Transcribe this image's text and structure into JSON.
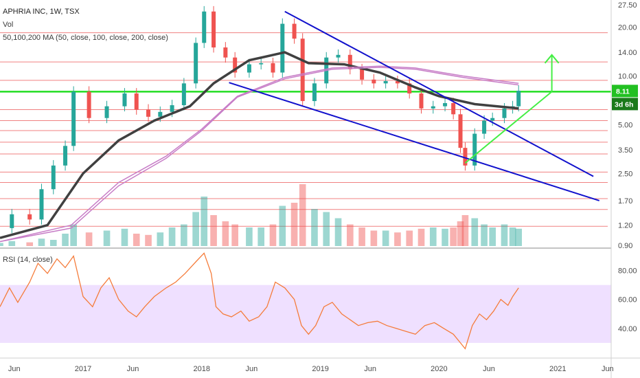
{
  "chart_data": {
    "type": "candlestick",
    "title": "APHRIA INC, 1W, TSX",
    "legend": [
      "Vol",
      "50,100,200 MA (50, close, 100, close, 200, close)"
    ],
    "price_scale": "log",
    "price_ticks": [
      "27.50",
      "20.00",
      "14.00",
      "10.00",
      "8.11",
      "3d 6h",
      "5.00",
      "3.50",
      "2.50",
      "1.70",
      "1.20",
      "0.90"
    ],
    "last_price": "8.11",
    "countdown": "3d 6h",
    "time_ticks": [
      "Jun",
      "2017",
      "Jun",
      "2018",
      "Jun",
      "2019",
      "Jun",
      "2020",
      "Jun",
      "2021",
      "Jun"
    ],
    "price_series": [
      {
        "x": 2016.3,
        "close": 1.15
      },
      {
        "x": 2016.4,
        "close": 1.4
      },
      {
        "x": 2016.55,
        "close": 1.3
      },
      {
        "x": 2016.65,
        "close": 2.0
      },
      {
        "x": 2016.75,
        "close": 2.8
      },
      {
        "x": 2016.85,
        "close": 3.7
      },
      {
        "x": 2016.92,
        "close": 8.0
      },
      {
        "x": 2017.05,
        "close": 5.5
      },
      {
        "x": 2017.2,
        "close": 6.5
      },
      {
        "x": 2017.35,
        "close": 7.8
      },
      {
        "x": 2017.45,
        "close": 6.2
      },
      {
        "x": 2017.55,
        "close": 5.6
      },
      {
        "x": 2017.65,
        "close": 6.0
      },
      {
        "x": 2017.75,
        "close": 6.6
      },
      {
        "x": 2017.85,
        "close": 9.0
      },
      {
        "x": 2017.95,
        "close": 16.0
      },
      {
        "x": 2018.02,
        "close": 25.0
      },
      {
        "x": 2018.1,
        "close": 15.0
      },
      {
        "x": 2018.2,
        "close": 13.0
      },
      {
        "x": 2018.28,
        "close": 10.5
      },
      {
        "x": 2018.4,
        "close": 11.8
      },
      {
        "x": 2018.5,
        "close": 12.0
      },
      {
        "x": 2018.6,
        "close": 10.5
      },
      {
        "x": 2018.68,
        "close": 21.0
      },
      {
        "x": 2018.78,
        "close": 17.0
      },
      {
        "x": 2018.85,
        "close": 7.0
      },
      {
        "x": 2018.95,
        "close": 9.0
      },
      {
        "x": 2019.05,
        "close": 13.0
      },
      {
        "x": 2019.15,
        "close": 13.5
      },
      {
        "x": 2019.25,
        "close": 11.0
      },
      {
        "x": 2019.35,
        "close": 9.5
      },
      {
        "x": 2019.45,
        "close": 9.0
      },
      {
        "x": 2019.55,
        "close": 9.3
      },
      {
        "x": 2019.65,
        "close": 9.0
      },
      {
        "x": 2019.75,
        "close": 7.8
      },
      {
        "x": 2019.85,
        "close": 6.3
      },
      {
        "x": 2019.95,
        "close": 6.5
      },
      {
        "x": 2020.05,
        "close": 6.8
      },
      {
        "x": 2020.12,
        "close": 5.8
      },
      {
        "x": 2020.18,
        "close": 3.6
      },
      {
        "x": 2020.22,
        "close": 2.8
      },
      {
        "x": 2020.3,
        "close": 4.4
      },
      {
        "x": 2020.38,
        "close": 5.3
      },
      {
        "x": 2020.45,
        "close": 5.5
      },
      {
        "x": 2020.55,
        "close": 6.3
      },
      {
        "x": 2020.62,
        "close": 6.5
      },
      {
        "x": 2020.67,
        "close": 8.11
      }
    ],
    "ma_series": [
      {
        "name": "50",
        "points": [
          [
            2016.3,
            1.0
          ],
          [
            2016.7,
            1.2
          ],
          [
            2017.0,
            2.5
          ],
          [
            2017.3,
            4.0
          ],
          [
            2017.6,
            5.3
          ],
          [
            2017.9,
            6.5
          ],
          [
            2018.1,
            9.0
          ],
          [
            2018.4,
            12.5
          ],
          [
            2018.7,
            14.0
          ],
          [
            2018.9,
            12.0
          ],
          [
            2019.2,
            11.8
          ],
          [
            2019.5,
            10.5
          ],
          [
            2019.8,
            8.5
          ],
          [
            2020.0,
            7.5
          ],
          [
            2020.3,
            6.7
          ],
          [
            2020.67,
            6.3
          ]
        ]
      },
      {
        "name": "100",
        "points": [
          [
            2016.3,
            0.95
          ],
          [
            2016.9,
            1.2
          ],
          [
            2017.3,
            2.2
          ],
          [
            2017.7,
            3.2
          ],
          [
            2018.0,
            4.7
          ],
          [
            2018.3,
            7.5
          ],
          [
            2018.7,
            9.8
          ],
          [
            2019.1,
            11.2
          ],
          [
            2019.5,
            11.5
          ],
          [
            2019.8,
            11.2
          ],
          [
            2020.2,
            10.0
          ],
          [
            2020.67,
            9.0
          ]
        ]
      },
      {
        "name": "200",
        "points": [
          [
            2016.3,
            0.95
          ],
          [
            2016.9,
            1.15
          ],
          [
            2017.3,
            2.1
          ],
          [
            2017.7,
            3.1
          ],
          [
            2018.0,
            4.6
          ],
          [
            2018.3,
            7.4
          ],
          [
            2018.7,
            9.6
          ],
          [
            2019.1,
            11.0
          ],
          [
            2019.5,
            11.3
          ],
          [
            2019.8,
            11.0
          ],
          [
            2020.2,
            9.8
          ],
          [
            2020.67,
            8.8
          ]
        ]
      }
    ],
    "horizontal_levels": [
      18.5,
      12.2,
      9.4,
      8.0,
      6.2,
      5.3,
      4.6,
      3.9,
      3.3,
      2.55,
      2.2,
      1.75,
      1.5,
      1.18
    ],
    "key_level": 8.0,
    "trendlines": [
      {
        "color": "blue",
        "from": [
          2018.7,
          25.0
        ],
        "to": [
          2021.3,
          2.4
        ]
      },
      {
        "color": "blue",
        "from": [
          2018.23,
          9.1
        ],
        "to": [
          2021.35,
          1.7
        ]
      },
      {
        "color": "green",
        "from": [
          2020.22,
          2.9
        ],
        "to": [
          2020.95,
          8.0
        ]
      }
    ],
    "target_arrow": {
      "x": 2020.95,
      "from": 8.0,
      "to": 13.5
    },
    "volume": [
      0.05,
      0.08,
      0.06,
      0.12,
      0.1,
      0.2,
      0.35,
      0.22,
      0.25,
      0.28,
      0.2,
      0.18,
      0.22,
      0.3,
      0.35,
      0.55,
      0.8,
      0.5,
      0.4,
      0.35,
      0.3,
      0.3,
      0.35,
      0.65,
      0.7,
      1.0,
      0.6,
      0.55,
      0.45,
      0.35,
      0.3,
      0.25,
      0.25,
      0.22,
      0.25,
      0.28,
      0.3,
      0.28,
      0.3,
      0.4,
      0.5,
      0.45,
      0.35,
      0.3,
      0.35,
      0.3,
      0.28
    ],
    "rsi": {
      "name": "RSI (14, close)",
      "ticks": [
        "80.00",
        "60.00",
        "40.00"
      ],
      "band": [
        30,
        70
      ],
      "values": [
        [
          2016.3,
          55
        ],
        [
          2016.38,
          68
        ],
        [
          2016.45,
          58
        ],
        [
          2016.55,
          72
        ],
        [
          2016.62,
          85
        ],
        [
          2016.7,
          78
        ],
        [
          2016.78,
          88
        ],
        [
          2016.85,
          82
        ],
        [
          2016.92,
          90
        ],
        [
          2017.0,
          62
        ],
        [
          2017.08,
          55
        ],
        [
          2017.15,
          68
        ],
        [
          2017.22,
          75
        ],
        [
          2017.3,
          60
        ],
        [
          2017.38,
          52
        ],
        [
          2017.45,
          48
        ],
        [
          2017.52,
          55
        ],
        [
          2017.6,
          62
        ],
        [
          2017.7,
          68
        ],
        [
          2017.78,
          72
        ],
        [
          2017.86,
          78
        ],
        [
          2017.95,
          86
        ],
        [
          2018.02,
          92
        ],
        [
          2018.08,
          78
        ],
        [
          2018.12,
          55
        ],
        [
          2018.18,
          50
        ],
        [
          2018.25,
          48
        ],
        [
          2018.33,
          52
        ],
        [
          2018.4,
          45
        ],
        [
          2018.48,
          48
        ],
        [
          2018.55,
          55
        ],
        [
          2018.62,
          72
        ],
        [
          2018.7,
          68
        ],
        [
          2018.78,
          60
        ],
        [
          2018.84,
          42
        ],
        [
          2018.9,
          36
        ],
        [
          2018.96,
          42
        ],
        [
          2019.03,
          55
        ],
        [
          2019.1,
          58
        ],
        [
          2019.18,
          50
        ],
        [
          2019.25,
          46
        ],
        [
          2019.32,
          42
        ],
        [
          2019.4,
          44
        ],
        [
          2019.48,
          45
        ],
        [
          2019.56,
          42
        ],
        [
          2019.64,
          40
        ],
        [
          2019.72,
          38
        ],
        [
          2019.8,
          36
        ],
        [
          2019.88,
          42
        ],
        [
          2019.96,
          44
        ],
        [
          2020.04,
          40
        ],
        [
          2020.12,
          36
        ],
        [
          2020.18,
          30
        ],
        [
          2020.22,
          26
        ],
        [
          2020.28,
          42
        ],
        [
          2020.34,
          50
        ],
        [
          2020.4,
          46
        ],
        [
          2020.46,
          52
        ],
        [
          2020.52,
          60
        ],
        [
          2020.58,
          56
        ],
        [
          2020.62,
          62
        ],
        [
          2020.67,
          68
        ]
      ]
    }
  },
  "colors": {
    "up": "#26a69a",
    "down": "#ef5350",
    "ma50": "#404040",
    "ma100": "#c77dc7",
    "ma200": "#c77dc7",
    "levels": "#f08080",
    "key_level": "#22dd22",
    "trend_blue": "#1111cc",
    "trend_green": "#44ee44",
    "rsi_line": "#f57c3b",
    "rsi_band": "#efe0ff",
    "badge_green": "#22c022",
    "badge_countdown": "#1a7a1a"
  }
}
